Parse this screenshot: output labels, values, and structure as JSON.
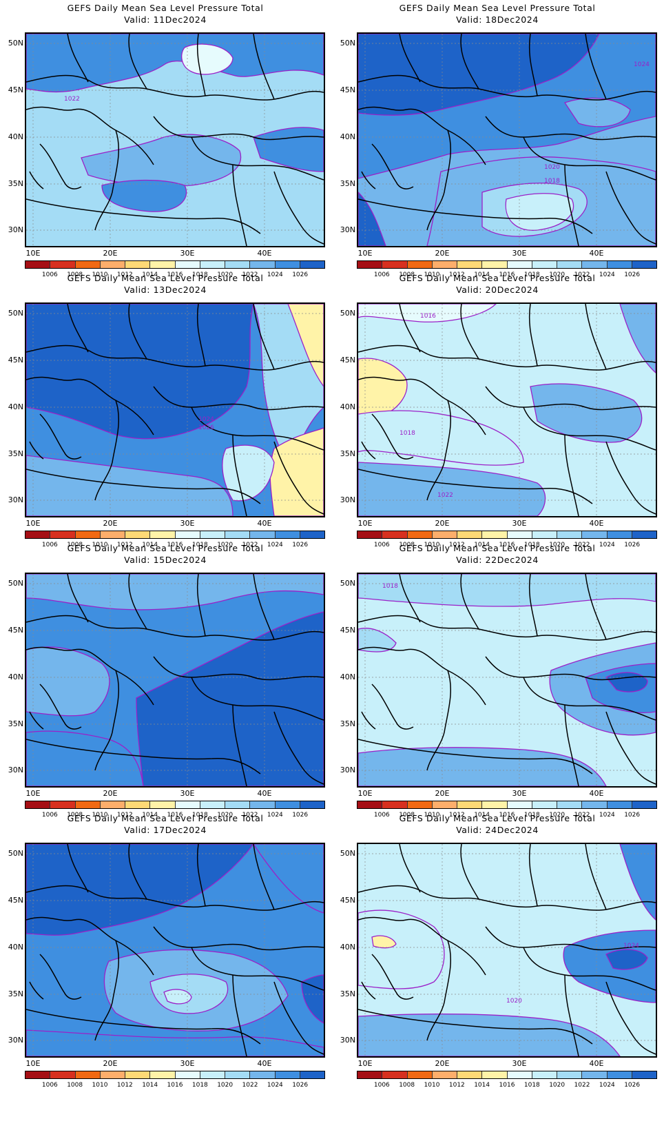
{
  "panels": [
    {
      "title": "GEFS Daily Mean Sea Level Pressure Total",
      "valid": "Valid: 11Dec2024",
      "base": 2,
      "contour_labels": [
        "1022"
      ]
    },
    {
      "title": "GEFS Daily Mean Sea Level Pressure Total",
      "valid": "Valid: 18Dec2024",
      "base": 0,
      "contour_labels": [
        "1024",
        "1020",
        "1018"
      ]
    },
    {
      "title": "GEFS Daily Mean Sea Level Pressure Total",
      "valid": "Valid: 13Dec2024",
      "base": 1,
      "contour_labels": [
        "1024",
        "1026"
      ]
    },
    {
      "title": "GEFS Daily Mean Sea Level Pressure Total",
      "valid": "Valid: 20Dec2024",
      "base": 3,
      "contour_labels": [
        "1016",
        "1018",
        "1022"
      ]
    },
    {
      "title": "GEFS Daily Mean Sea Level Pressure Total",
      "valid": "Valid: 15Dec2024",
      "base": 1,
      "contour_labels": []
    },
    {
      "title": "GEFS Daily Mean Sea Level Pressure Total",
      "valid": "Valid: 22Dec2024",
      "base": 3,
      "contour_labels": [
        "1018"
      ]
    },
    {
      "title": "GEFS Daily Mean Sea Level Pressure Total",
      "valid": "Valid: 17Dec2024",
      "base": 1,
      "contour_labels": []
    },
    {
      "title": "GEFS Daily Mean Sea Level Pressure Total",
      "valid": "Valid: 24Dec2024",
      "base": 3,
      "contour_labels": [
        "1024",
        "1020"
      ]
    }
  ],
  "lat_labels": [
    "50N",
    "45N",
    "40N",
    "35N",
    "30N"
  ],
  "lon_labels": [
    "10E",
    "20E",
    "30E",
    "40E"
  ],
  "colorbar": {
    "labels": [
      "1006",
      "1008",
      "1010",
      "1012",
      "1014",
      "1016",
      "1018",
      "1020",
      "1022",
      "1024",
      "1026"
    ],
    "colors": [
      "#a50f15",
      "#d7301f",
      "#f16913",
      "#fdae6b",
      "#fed976",
      "#fff3a8",
      "#e6fbfd",
      "#c8f0fa",
      "#a4dcf5",
      "#74b6ec",
      "#3f8fe0",
      "#1e63c8"
    ]
  },
  "contour_color": "#9b20c8"
}
